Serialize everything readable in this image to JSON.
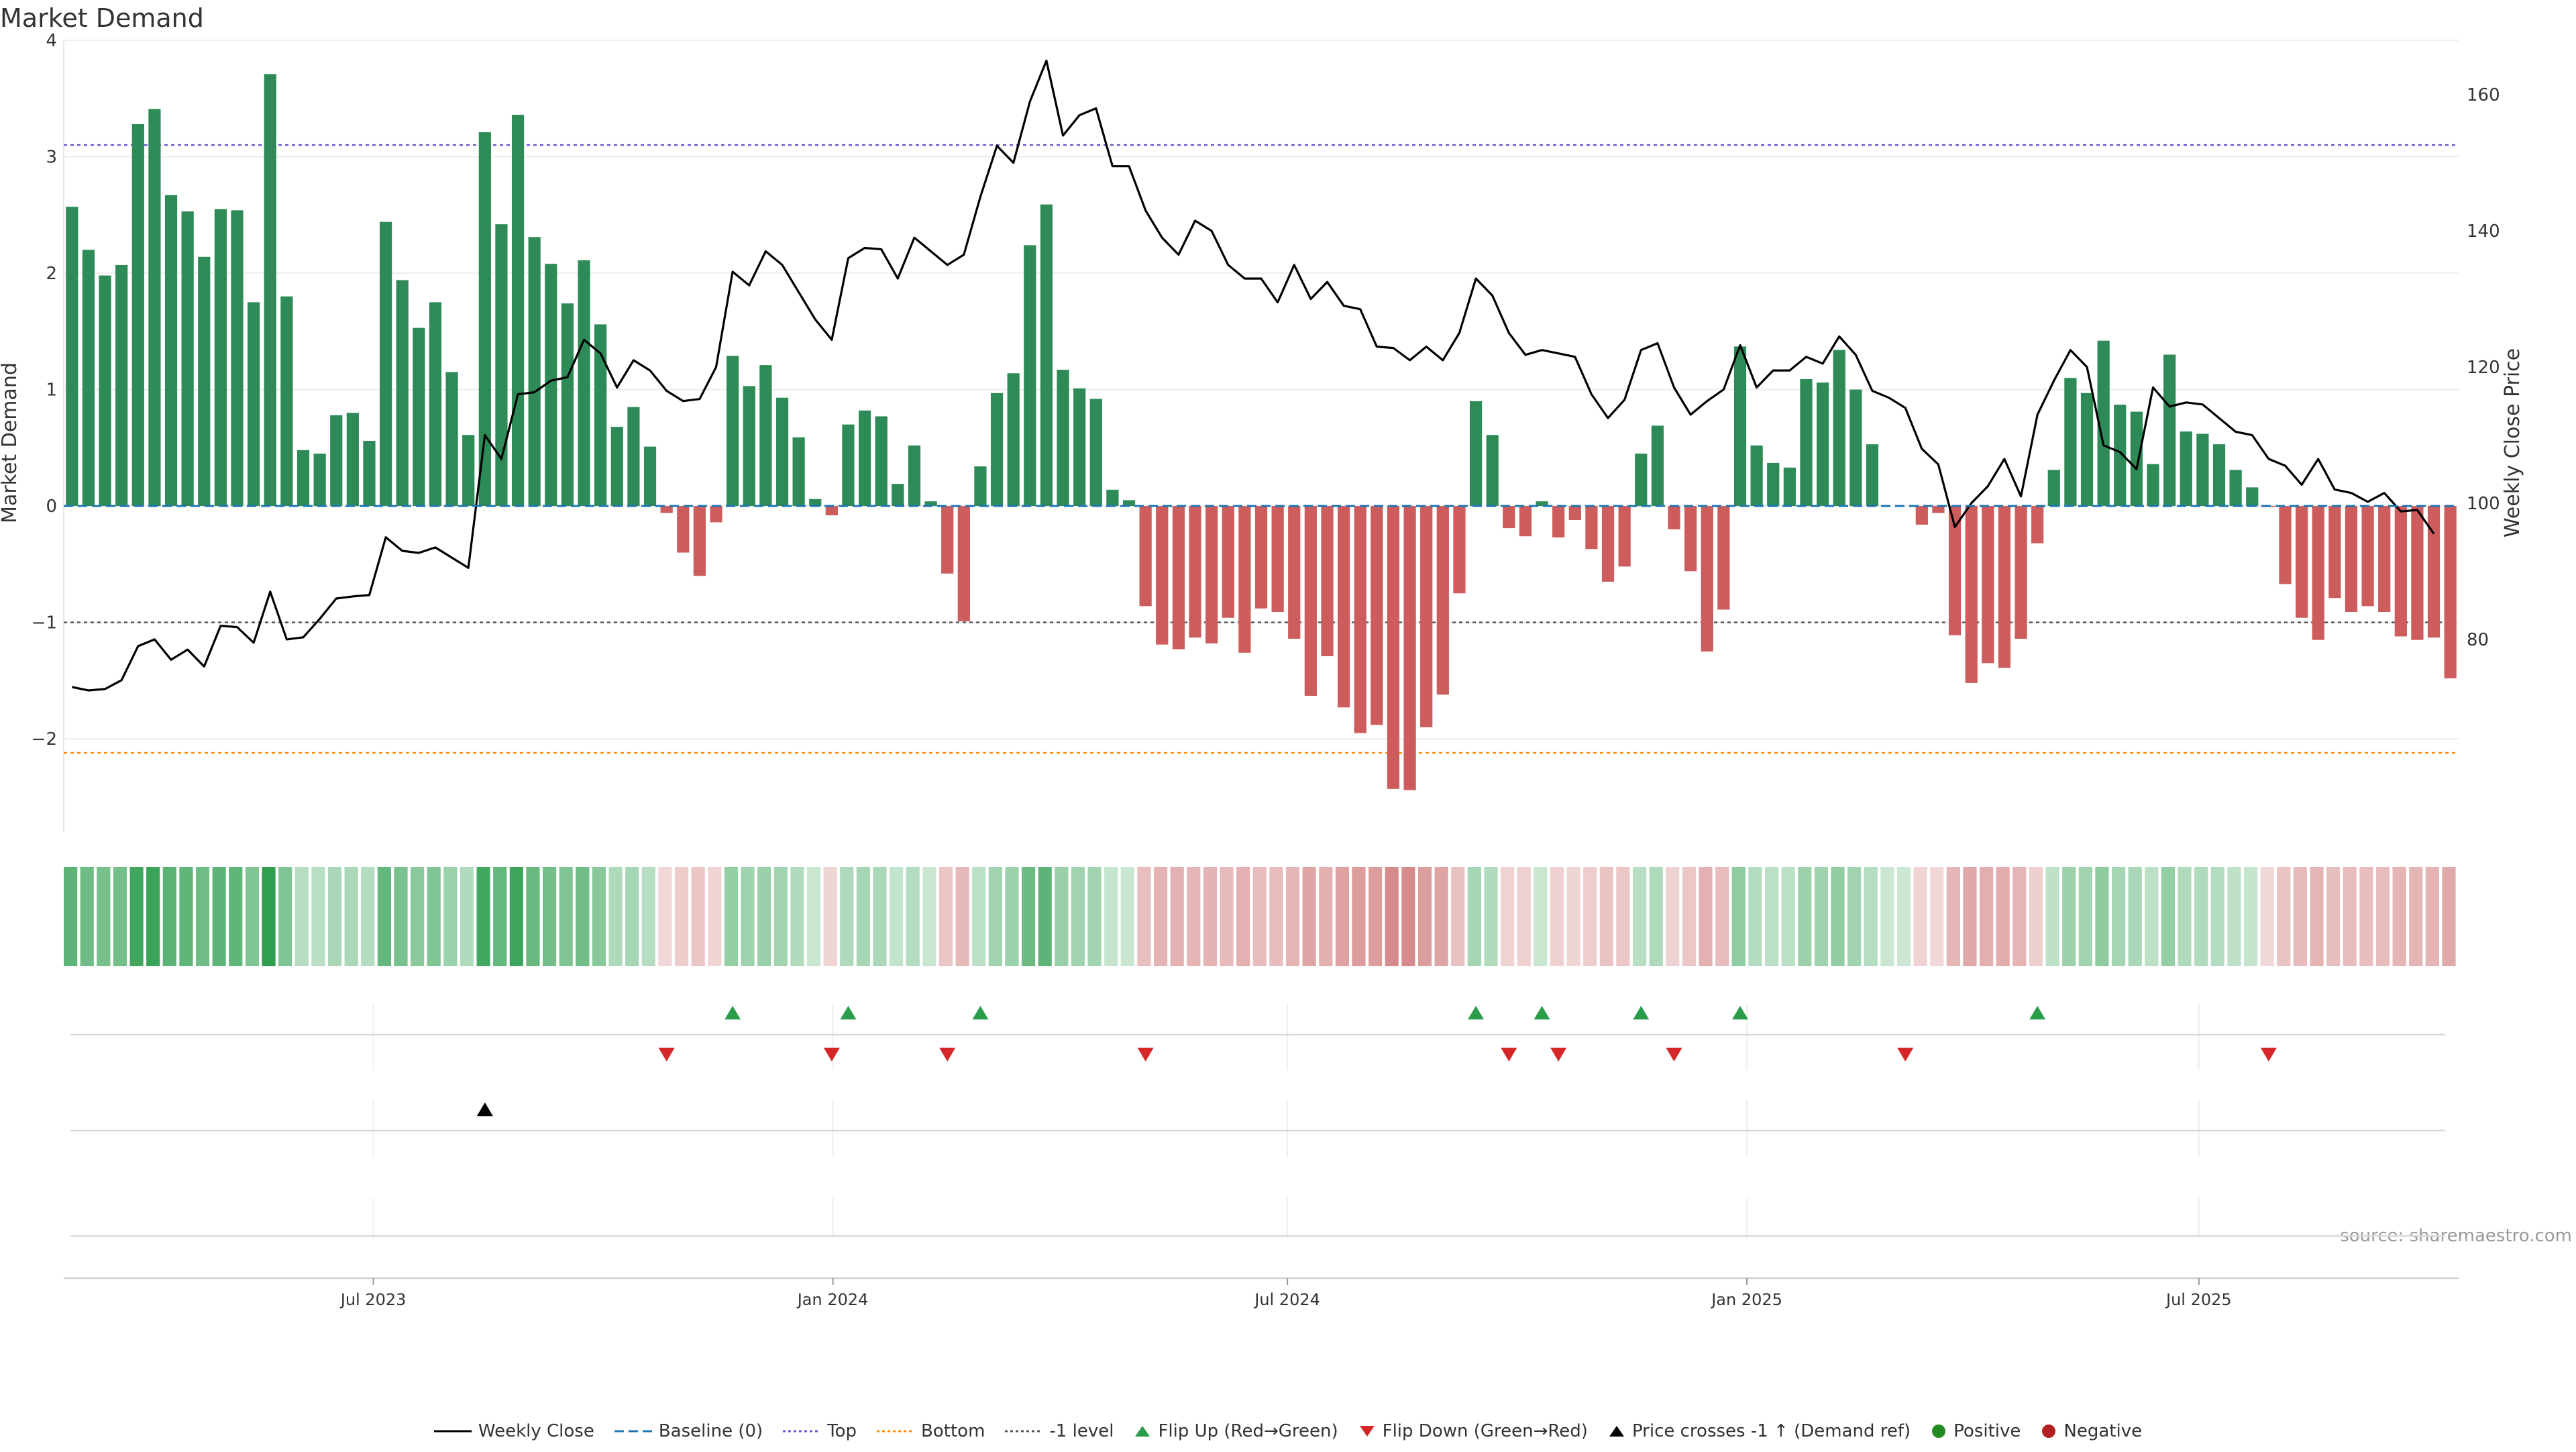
{
  "title": "Market Demand",
  "source": "source: sharemaestro.com",
  "colors": {
    "positive": "#2e8b57",
    "negative": "#cd5c5c",
    "price": "#000000",
    "baseline": "#1f77b4",
    "top": "#6a5acd",
    "bottom": "#ff8c00",
    "minus_one": "#555555",
    "flip_up": "#2a9d4a",
    "flip_down": "#d62728",
    "cross": "#000000",
    "pos_dot": "#228b22",
    "neg_dot": "#b22222"
  },
  "chart_data": {
    "type": "bar+line",
    "title": "Market Demand",
    "ylabel": "Market Demand",
    "y2label": "Weekly Close Price",
    "ylim": [
      -2.8,
      4
    ],
    "y2lim": [
      51.7,
      168
    ],
    "yticks": [
      4,
      3,
      2,
      1,
      0,
      -1,
      -2
    ],
    "ytick_labels": [
      "4",
      "3",
      "2",
      "1",
      "0",
      "−1",
      "−2"
    ],
    "y2ticks": [
      160,
      140,
      120,
      100,
      80
    ],
    "y2tick_labels": [
      "160",
      "140",
      "120",
      "100",
      "80"
    ],
    "x_start": "2023-02-27",
    "x_end": "2025-10-13",
    "xticks": [
      {
        "date": "2023-07-01",
        "label": "Jul 2023"
      },
      {
        "date": "2024-01-01",
        "label": "Jan 2024"
      },
      {
        "date": "2024-07-01",
        "label": "Jul 2024"
      },
      {
        "date": "2025-01-01",
        "label": "Jan 2025"
      },
      {
        "date": "2025-07-01",
        "label": "Jul 2025"
      }
    ],
    "levels": {
      "baseline": 0,
      "top": 3.1,
      "bottom": -2.12,
      "minus_one": -1
    },
    "demand": [
      2.57,
      2.2,
      1.98,
      2.07,
      3.28,
      3.41,
      2.67,
      2.53,
      2.14,
      2.55,
      2.54,
      1.75,
      3.71,
      1.8,
      0.48,
      0.45,
      0.78,
      0.8,
      0.56,
      2.44,
      1.94,
      1.53,
      1.75,
      1.15,
      0.61,
      3.21,
      2.42,
      3.36,
      2.31,
      2.08,
      1.74,
      2.11,
      1.56,
      0.68,
      0.85,
      0.51,
      -0.06,
      -0.4,
      -0.6,
      -0.14,
      1.29,
      1.03,
      1.21,
      0.93,
      0.59,
      0.06,
      -0.08,
      0.7,
      0.82,
      0.77,
      0.19,
      0.52,
      0.04,
      -0.58,
      -0.99,
      0.34,
      0.97,
      1.14,
      2.24,
      2.59,
      1.17,
      1.01,
      0.92,
      0.14,
      0.05,
      -0.86,
      -1.19,
      -1.23,
      -1.13,
      -1.18,
      -0.96,
      -1.26,
      -0.88,
      -0.91,
      -1.14,
      -1.63,
      -1.29,
      -1.73,
      -1.95,
      -1.88,
      -2.43,
      -2.44,
      -1.9,
      -1.62,
      -0.75,
      0.9,
      0.61,
      -0.19,
      -0.26,
      0.04,
      -0.27,
      -0.12,
      -0.37,
      -0.65,
      -0.52,
      0.45,
      0.69,
      -0.2,
      -0.56,
      -1.25,
      -0.89,
      1.37,
      0.52,
      0.37,
      0.33,
      1.09,
      1.06,
      1.34,
      1.0,
      0.53,
      0.0,
      0.0,
      -0.16,
      -0.06,
      -1.11,
      -1.52,
      -1.35,
      -1.39,
      -1.14,
      -0.32,
      0.31,
      1.1,
      0.97,
      1.42,
      0.87,
      0.81,
      0.36,
      1.3,
      0.64,
      0.62,
      0.53,
      0.31,
      0.16,
      -0.01,
      -0.67,
      -0.96,
      -1.15,
      -0.79,
      -0.91,
      -0.86,
      -0.91,
      -1.12,
      -1.15,
      -1.13,
      -1.48
    ],
    "price": [
      73,
      72.5,
      72.7,
      74,
      79,
      80,
      77,
      78.5,
      76,
      82,
      81.8,
      79.5,
      87,
      80,
      80.3,
      83,
      86,
      86.3,
      86.5,
      95,
      93,
      92.7,
      93.5,
      92,
      90.5,
      110,
      106.5,
      116,
      116.3,
      118,
      118.5,
      124,
      122,
      117,
      121,
      119.5,
      116.5,
      115,
      115.3,
      120,
      134,
      132,
      137,
      135,
      131,
      127,
      124,
      136,
      137.5,
      137.3,
      133,
      139,
      137,
      135,
      136.5,
      145,
      152.5,
      150,
      159,
      165,
      154,
      157,
      158,
      149.5,
      149.5,
      143,
      139,
      136.5,
      141.5,
      140,
      135,
      133,
      133,
      129.5,
      135,
      130,
      132.5,
      129,
      128.5,
      123,
      122.8,
      121,
      123,
      121,
      125,
      133,
      130.5,
      125,
      121.8,
      122.5,
      122,
      121.5,
      116,
      112.5,
      115.2,
      122.5,
      123.5,
      117,
      113,
      115,
      116.7,
      123.2,
      117,
      119.5,
      119.5,
      121.5,
      120.5,
      124.5,
      121.8,
      116.5,
      115.5,
      114,
      108,
      105.7,
      96.5,
      100,
      102.5,
      106.5,
      101,
      113,
      118,
      122.5,
      120,
      108.5,
      107.5,
      105,
      117,
      114.2,
      114.8,
      114.5,
      112.5,
      110.5,
      110,
      106.5,
      105.5,
      102.7,
      106.5,
      102,
      101.5,
      100.2,
      101.5,
      98.8,
      99,
      95.5
    ],
    "flip_up_indices": [
      40,
      47,
      55,
      85,
      89,
      95,
      101,
      119
    ],
    "flip_down_indices": [
      36,
      46,
      53,
      65,
      87,
      90,
      97,
      111,
      133
    ],
    "price_cross_indices": [
      25
    ]
  },
  "legend": [
    {
      "key": "weekly_close",
      "label": "Weekly Close"
    },
    {
      "key": "baseline",
      "label": "Baseline (0)"
    },
    {
      "key": "top",
      "label": "Top"
    },
    {
      "key": "bottom",
      "label": "Bottom"
    },
    {
      "key": "minus_one",
      "label": "-1 level"
    },
    {
      "key": "flip_up",
      "label": "Flip Up (Red→Green)"
    },
    {
      "key": "flip_down",
      "label": "Flip Down (Green→Red)"
    },
    {
      "key": "price_cross",
      "label": "Price crosses -1 ↑ (Demand ref)"
    },
    {
      "key": "positive",
      "label": "Positive"
    },
    {
      "key": "negative",
      "label": "Negative"
    }
  ]
}
